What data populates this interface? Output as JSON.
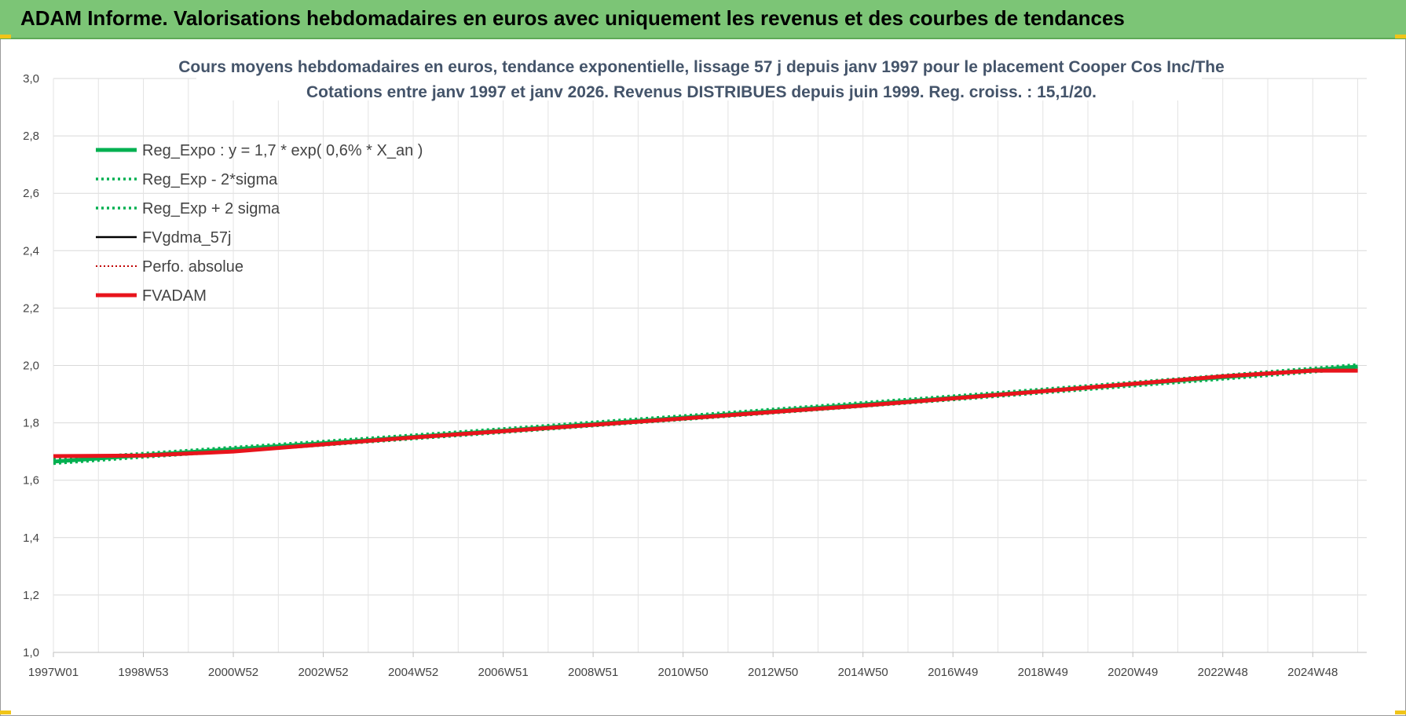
{
  "header": {
    "title": "ADAM Informe. Valorisations hebdomadaires en euros avec uniquement les revenus et des courbes de tendances"
  },
  "colors": {
    "banner": "#7cc576",
    "reg_expo": "#00b050",
    "fvadam": "#e8141c",
    "fvgdma": "#000000",
    "perfo": "#c00000",
    "title_text": "#44546a"
  },
  "chart_data": {
    "type": "line",
    "title_line1": "Cours moyens hebdomadaires en euros, tendance exponentielle, lissage 57 j depuis janv 1997 pour le placement Cooper Cos Inc/The",
    "title_line2": "Cotations entre janv 1997 et janv 2026. Revenus DISTRIBUES depuis juin 1999. Reg. croiss. : 15,1/20.",
    "xlabel": "",
    "ylabel": "",
    "ylim": [
      1.0,
      3.0
    ],
    "yticks": [
      "3,0",
      "2,8",
      "2,6",
      "2,4",
      "2,2",
      "2,0",
      "1,8",
      "1,6",
      "1,4",
      "1,2",
      "1,0"
    ],
    "xticks": [
      "1997W01",
      "1998W53",
      "2000W52",
      "2002W52",
      "2004W52",
      "2006W51",
      "2008W51",
      "2010W50",
      "2012W50",
      "2014W50",
      "2016W49",
      "2018W49",
      "2020W49",
      "2022W48",
      "2024W48"
    ],
    "grid": true,
    "legend_position": "top-left",
    "x_years": [
      1997.0,
      1999.0,
      2001.0,
      2003.0,
      2005.0,
      2007.0,
      2009.0,
      2011.0,
      2013.0,
      2015.0,
      2017.0,
      2019.0,
      2021.0,
      2023.0,
      2025.0,
      2026.0
    ],
    "series": [
      {
        "name": "Reg_Expo : y = 1,7 * exp( 0,6% *  X_an )",
        "style": "solid-thick",
        "color": "#00b050",
        "values": [
          1.665,
          1.687,
          1.708,
          1.729,
          1.751,
          1.773,
          1.796,
          1.818,
          1.841,
          1.864,
          1.887,
          1.911,
          1.935,
          1.959,
          1.984,
          1.996
        ]
      },
      {
        "name": "Reg_Exp - 2*sigma",
        "style": "dotted",
        "color": "#00b050",
        "values": [
          1.658,
          1.68,
          1.701,
          1.722,
          1.744,
          1.766,
          1.789,
          1.811,
          1.834,
          1.857,
          1.88,
          1.904,
          1.928,
          1.952,
          1.977,
          1.989
        ]
      },
      {
        "name": "Reg_Exp + 2 sigma",
        "style": "dotted",
        "color": "#00b050",
        "values": [
          1.672,
          1.694,
          1.715,
          1.736,
          1.758,
          1.78,
          1.803,
          1.825,
          1.848,
          1.871,
          1.894,
          1.918,
          1.942,
          1.966,
          1.991,
          2.003
        ]
      },
      {
        "name": "FVgdma_57j",
        "style": "solid",
        "color": "#000000",
        "values": [
          1.684,
          1.686,
          1.7,
          1.725,
          1.749,
          1.771,
          1.793,
          1.815,
          1.838,
          1.86,
          1.885,
          1.91,
          1.936,
          1.962,
          1.982,
          1.982
        ]
      },
      {
        "name": "Perfo. absolue",
        "style": "dotted-thin",
        "color": "#c00000",
        "values": [
          1.684,
          1.686,
          1.7,
          1.725,
          1.749,
          1.771,
          1.793,
          1.815,
          1.838,
          1.86,
          1.885,
          1.91,
          1.936,
          1.962,
          1.982,
          1.982
        ]
      },
      {
        "name": "FVADAM",
        "style": "solid-thick",
        "color": "#e8141c",
        "values": [
          1.684,
          1.686,
          1.7,
          1.725,
          1.749,
          1.771,
          1.793,
          1.815,
          1.838,
          1.86,
          1.885,
          1.91,
          1.936,
          1.962,
          1.982,
          1.982
        ]
      }
    ]
  }
}
